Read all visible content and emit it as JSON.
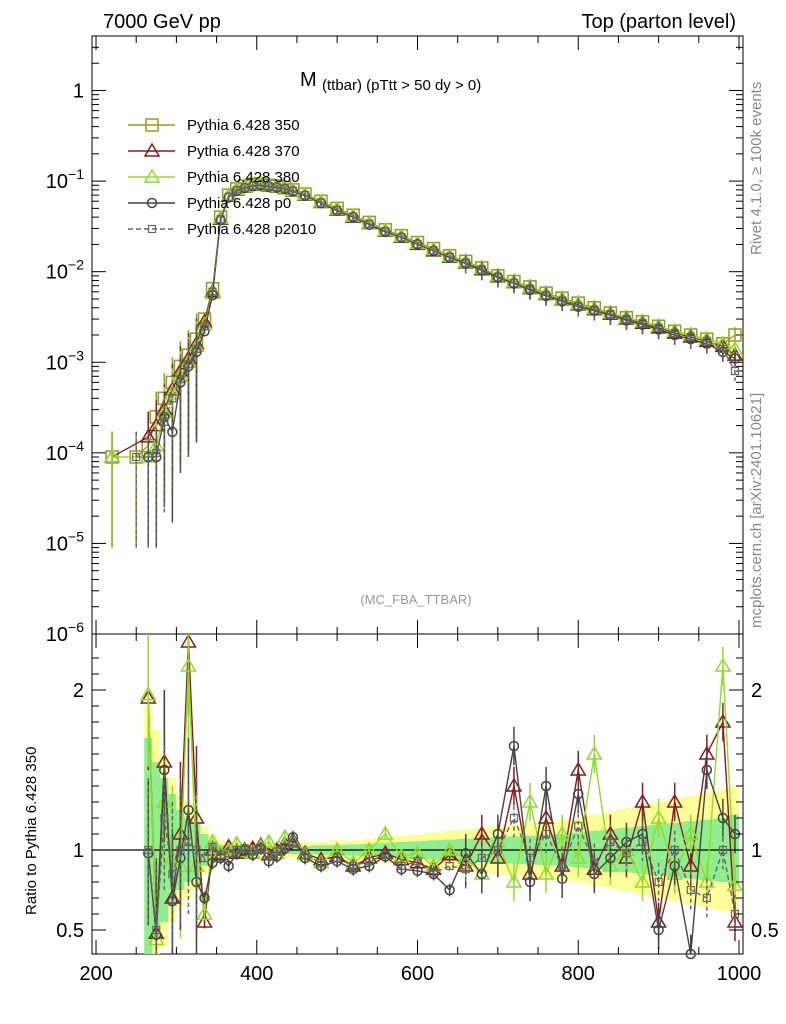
{
  "header": {
    "left": "7000 GeV pp",
    "right": "Top (parton level)"
  },
  "side": {
    "top": "Rivet 4.1.0, ≥ 100k events",
    "bottom": "mcplots.cern.ch [arXiv:2401.10621]"
  },
  "colors": {
    "p350": "#9a9a18",
    "p370": "#8b1a1a",
    "p380": "#8fdc2a",
    "p0": "#444444",
    "p2010": "#666666",
    "band_yellow": "#ffff99",
    "band_green": "#90ee90"
  },
  "chart_data": [
    {
      "type": "line",
      "title": "M",
      "subtitle": "(ttbar) (pTtt > 50 dy > 0)",
      "watermark": "(MC_FBA_TTBAR)",
      "yscale": "log",
      "xlim": [
        195,
        1005
      ],
      "ylim": [
        1e-06,
        4
      ],
      "yticks": [
        {
          "value": 1,
          "base": "1",
          "exp": ""
        },
        {
          "value": 0.1,
          "base": "10",
          "exp": "−1"
        },
        {
          "value": 0.01,
          "base": "10",
          "exp": "−2"
        },
        {
          "value": 0.001,
          "base": "10",
          "exp": "−3"
        },
        {
          "value": 0.0001,
          "base": "10",
          "exp": "−4"
        },
        {
          "value": 1e-05,
          "base": "10",
          "exp": "−5"
        },
        {
          "value": 1e-06,
          "base": "10",
          "exp": "−6"
        }
      ],
      "x": [
        220,
        250,
        265,
        275,
        285,
        295,
        305,
        315,
        325,
        335,
        345,
        355,
        365,
        375,
        385,
        395,
        405,
        415,
        425,
        435,
        445,
        460,
        480,
        500,
        520,
        540,
        560,
        580,
        600,
        620,
        640,
        660,
        680,
        700,
        720,
        740,
        760,
        780,
        800,
        820,
        840,
        860,
        880,
        900,
        920,
        940,
        960,
        980,
        995
      ],
      "series": [
        {
          "name": "Pythia 6.428 350",
          "marker": "square-open",
          "dash": false,
          "values": [
            9e-05,
            9e-05,
            0.00012,
            0.00025,
            0.0004,
            0.0006,
            0.0009,
            0.0012,
            0.0018,
            0.003,
            0.0065,
            0.04,
            0.07,
            0.082,
            0.088,
            0.092,
            0.094,
            0.09,
            0.088,
            0.085,
            0.08,
            0.072,
            0.06,
            0.05,
            0.042,
            0.035,
            0.029,
            0.025,
            0.021,
            0.018,
            0.015,
            0.013,
            0.011,
            0.009,
            0.0078,
            0.0068,
            0.0058,
            0.0051,
            0.0045,
            0.004,
            0.0035,
            0.0031,
            0.0028,
            0.0025,
            0.0022,
            0.002,
            0.0018,
            0.0016,
            0.002
          ]
        },
        {
          "name": "Pythia 6.428 370",
          "marker": "triangle-open",
          "dash": false,
          "values": [
            9e-05,
            null,
            0.00015,
            0.0002,
            0.0003,
            0.0005,
            0.0008,
            0.0011,
            0.0016,
            0.0028,
            0.006,
            0.038,
            0.068,
            0.08,
            0.086,
            0.09,
            0.092,
            0.088,
            0.086,
            0.083,
            0.078,
            0.07,
            0.058,
            0.048,
            0.04,
            0.034,
            0.028,
            0.024,
            0.02,
            0.017,
            0.0145,
            0.0125,
            0.0105,
            0.0088,
            0.0076,
            0.0065,
            0.0056,
            0.0049,
            0.0043,
            0.0038,
            0.0034,
            0.003,
            0.0027,
            0.0024,
            0.0021,
            0.0019,
            0.0017,
            0.0015,
            0.0012
          ]
        },
        {
          "name": "Pythia 6.428 380",
          "marker": "triangle-open",
          "dash": false,
          "values": [
            9e-05,
            null,
            9e-05,
            0.00012,
            0.00028,
            0.00045,
            0.0007,
            0.001,
            0.0015,
            0.0026,
            0.0058,
            0.039,
            0.069,
            0.081,
            0.087,
            0.091,
            0.093,
            0.089,
            0.087,
            0.084,
            0.079,
            0.071,
            0.059,
            0.049,
            0.041,
            0.0345,
            0.0285,
            0.0245,
            0.0205,
            0.0175,
            0.0148,
            0.0128,
            0.0108,
            0.009,
            0.0077,
            0.0066,
            0.0057,
            0.005,
            0.0044,
            0.0039,
            0.0035,
            0.0031,
            0.0028,
            0.0025,
            0.0022,
            0.002,
            0.0018,
            0.0016,
            0.0014
          ]
        },
        {
          "name": "Pythia 6.428 p0",
          "marker": "circle-open",
          "dash": false,
          "values": [
            null,
            null,
            9e-05,
            9e-05,
            0.00025,
            0.00017,
            0.0006,
            0.0009,
            0.0013,
            0.0022,
            0.0055,
            0.037,
            0.066,
            0.078,
            0.084,
            0.088,
            0.09,
            0.087,
            0.085,
            0.082,
            0.077,
            0.069,
            0.057,
            0.047,
            0.04,
            0.033,
            0.0275,
            0.0238,
            0.02,
            0.017,
            0.0143,
            0.0123,
            0.0103,
            0.0086,
            0.0074,
            0.0063,
            0.0054,
            0.0047,
            0.0041,
            0.0037,
            0.0033,
            0.0029,
            0.0026,
            0.0023,
            0.002,
            0.0018,
            0.0016,
            0.0013,
            0.0011
          ]
        },
        {
          "name": "Pythia 6.428 p2010",
          "marker": "square-small",
          "dash": true,
          "values": [
            null,
            9e-05,
            9e-05,
            0.0001,
            0.00022,
            0.0004,
            0.00065,
            0.00095,
            0.0014,
            0.0025,
            0.006,
            0.038,
            0.067,
            0.079,
            0.085,
            0.089,
            0.091,
            0.088,
            0.086,
            0.083,
            0.078,
            0.07,
            0.058,
            0.048,
            0.0405,
            0.0338,
            0.028,
            0.024,
            0.0202,
            0.0172,
            0.0146,
            0.0126,
            0.0106,
            0.0088,
            0.0075,
            0.0065,
            0.0055,
            0.0048,
            0.0042,
            0.0038,
            0.0034,
            0.003,
            0.0027,
            0.0024,
            0.0021,
            0.0019,
            0.0017,
            0.0014,
            0.0008
          ]
        }
      ]
    },
    {
      "type": "line",
      "ylabel": "Ratio to Pythia 6.428 350",
      "xlim": [
        195,
        1005
      ],
      "ylim": [
        0.35,
        2.35
      ],
      "yticks": [
        0.5,
        1,
        2
      ],
      "xticks": [
        200,
        400,
        600,
        800,
        1000
      ],
      "x": [
        265,
        275,
        285,
        295,
        305,
        315,
        325,
        335,
        345,
        355,
        365,
        375,
        385,
        395,
        405,
        415,
        425,
        435,
        445,
        460,
        480,
        500,
        520,
        540,
        560,
        580,
        600,
        620,
        640,
        660,
        680,
        700,
        720,
        740,
        760,
        780,
        800,
        820,
        840,
        860,
        880,
        900,
        920,
        940,
        960,
        980,
        995
      ],
      "band": {
        "yellow_halfwidth": [
          0.9,
          0.75,
          0.6,
          0.45,
          0.35,
          0.3,
          0.25,
          0.15,
          0.1,
          0.06,
          0.05,
          0.05,
          0.05,
          0.05,
          0.05,
          0.05,
          0.05,
          0.05,
          0.05,
          0.05,
          0.05,
          0.06,
          0.06,
          0.07,
          0.08,
          0.09,
          0.1,
          0.11,
          0.12,
          0.13,
          0.14,
          0.15,
          0.16,
          0.17,
          0.18,
          0.19,
          0.2,
          0.22,
          0.24,
          0.26,
          0.28,
          0.3,
          0.32,
          0.34,
          0.36,
          0.38,
          0.4
        ],
        "green_halfwidth": [
          0.7,
          0.55,
          0.45,
          0.35,
          0.25,
          0.2,
          0.17,
          0.1,
          0.06,
          0.03,
          0.025,
          0.025,
          0.025,
          0.025,
          0.025,
          0.025,
          0.025,
          0.025,
          0.025,
          0.025,
          0.03,
          0.03,
          0.035,
          0.04,
          0.045,
          0.05,
          0.055,
          0.06,
          0.065,
          0.07,
          0.075,
          0.08,
          0.085,
          0.09,
          0.095,
          0.1,
          0.11,
          0.12,
          0.13,
          0.14,
          0.15,
          0.16,
          0.17,
          0.18,
          0.19,
          0.2,
          0.22
        ]
      },
      "series": [
        {
          "name": "Pythia 6.428 370",
          "values": [
            1.95,
            0.48,
            1.55,
            0.7,
            1.1,
            2.3,
            1.2,
            0.55,
            1.0,
            0.97,
            1.02,
            0.98,
            1.0,
            1.01,
            1.03,
            0.97,
            1.0,
            1.04,
            1.06,
            0.98,
            0.94,
            0.96,
            0.9,
            0.95,
            0.98,
            0.94,
            0.92,
            0.88,
            0.97,
            0.9,
            1.1,
            0.95,
            1.4,
            0.85,
            1.2,
            0.9,
            1.5,
            0.88,
            1.1,
            0.95,
            1.3,
            0.55,
            1.3,
            0.9,
            1.6,
            1.8,
            0.55
          ]
        },
        {
          "name": "Pythia 6.428 380",
          "values": [
            1.97,
            0.44,
            1.3,
            0.95,
            0.9,
            2.15,
            0.9,
            0.6,
            1.05,
            0.98,
            1.0,
            1.04,
            0.99,
            0.98,
            1.02,
            1.05,
            0.98,
            1.08,
            1.05,
            0.97,
            0.92,
            1.0,
            0.92,
            1.0,
            1.1,
            0.96,
            0.98,
            0.9,
            1.0,
            0.95,
            0.85,
            1.05,
            0.8,
            1.3,
            0.85,
            1.1,
            0.95,
            1.6,
            0.9,
            1.0,
            0.8,
            1.2,
            0.85,
            1.1,
            0.8,
            2.15,
            0.78
          ]
        },
        {
          "name": "Pythia 6.428 p0",
          "values": [
            0.98,
            0.47,
            1.5,
            0.68,
            0.95,
            1.25,
            0.8,
            0.7,
            0.92,
            0.95,
            0.9,
            0.98,
            1.0,
            0.97,
            1.01,
            0.93,
            0.96,
            1.01,
            1.08,
            0.95,
            0.9,
            0.93,
            0.88,
            0.9,
            0.96,
            0.88,
            0.87,
            0.85,
            0.75,
            0.98,
            0.85,
            1.1,
            1.65,
            0.8,
            1.4,
            0.82,
            1.35,
            0.85,
            0.95,
            1.05,
            1.1,
            0.5,
            0.9,
            0.35,
            1.5,
            1.2,
            1.1
          ]
        },
        {
          "name": "Pythia 6.428 p2010",
          "values": [
            1.0,
            0.5,
            1.2,
            0.85,
            1.0,
            1.05,
            1.0,
            0.95,
            1.02,
            0.97,
            0.98,
            1.0,
            1.01,
            0.99,
            1.0,
            0.96,
            0.99,
            1.02,
            1.04,
            0.97,
            0.92,
            0.95,
            0.9,
            0.93,
            0.97,
            0.9,
            0.93,
            0.86,
            0.9,
            0.88,
            0.95,
            1.0,
            1.2,
            0.95,
            1.1,
            0.9,
            1.15,
            0.92,
            1.05,
            0.98,
            1.05,
            0.8,
            1.0,
            0.75,
            0.7,
            1.0,
            0.6
          ]
        }
      ],
      "reference": "Pythia 6.428 350"
    }
  ]
}
